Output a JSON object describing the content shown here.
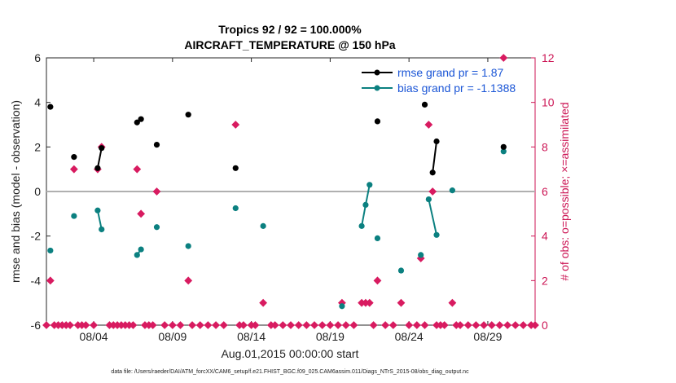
{
  "chart_data": {
    "type": "scatter",
    "title_line1": "Tropics 92 / 92 = 100.000%",
    "title_line2": "AIRCRAFT_TEMPERATURE @ 150 hPa",
    "xlabel": "Aug.01,2015 00:00:00 start",
    "ylabel_left": "rmse and bias (model - observation)",
    "ylabel_right": "# of obs: o=possible; ×=assimilated",
    "footnote": "data file: /Users/raeder/DAI/ATM_forcXX/CAM6_setup/f.e21.FHIST_BGC.f09_025.CAM6assim.011/Diags_NTrS_2015-08/obs_diag_output.nc",
    "xlim": [
      1,
      32
    ],
    "ylim_left": [
      -6,
      6
    ],
    "ylim_right": [
      0,
      12
    ],
    "x_tick_values": [
      4,
      9,
      14,
      19,
      24,
      29
    ],
    "x_tick_labels": [
      "08/04",
      "08/09",
      "08/14",
      "08/19",
      "08/24",
      "08/29"
    ],
    "y_left_ticks": [
      -6,
      -4,
      -2,
      0,
      2,
      4,
      6
    ],
    "y_right_ticks": [
      0,
      2,
      4,
      6,
      8,
      10,
      12
    ],
    "legend": [
      {
        "name": "rmse grand pr = 1.87",
        "color": "#000000"
      },
      {
        "name": "bias grand pr = -1.1388",
        "color": "#0b8080"
      }
    ],
    "colors": {
      "rmse": "#000000",
      "bias": "#0b8080",
      "obs": "#d81b60",
      "zero_line": "#b0b0b0"
    },
    "rmse_segments": [
      [
        [
          1.25,
          3.8
        ]
      ],
      [
        [
          2.75,
          1.55
        ]
      ],
      [
        [
          4.25,
          1.05
        ],
        [
          4.5,
          1.95
        ]
      ],
      [
        [
          6.75,
          3.1
        ],
        [
          7.0,
          3.25
        ]
      ],
      [
        [
          8.0,
          2.1
        ]
      ],
      [
        [
          10.0,
          3.45
        ]
      ],
      [
        [
          13.0,
          1.05
        ]
      ],
      [
        [
          22.0,
          3.15
        ]
      ],
      [
        [
          25.0,
          3.9
        ]
      ],
      [
        [
          25.5,
          0.85
        ],
        [
          25.75,
          2.25
        ]
      ],
      [
        [
          30.0,
          2.0
        ]
      ]
    ],
    "bias_segments": [
      [
        [
          1.25,
          -2.65
        ]
      ],
      [
        [
          2.75,
          -1.1
        ]
      ],
      [
        [
          4.25,
          -0.85
        ],
        [
          4.5,
          -1.7
        ]
      ],
      [
        [
          6.75,
          -2.85
        ],
        [
          7.0,
          -2.6
        ]
      ],
      [
        [
          8.0,
          -1.6
        ]
      ],
      [
        [
          10.0,
          -2.45
        ]
      ],
      [
        [
          13.0,
          -0.75
        ]
      ],
      [
        [
          14.75,
          -1.55
        ]
      ],
      [
        [
          19.75,
          -5.15
        ]
      ],
      [
        [
          21.0,
          -1.55
        ],
        [
          21.25,
          -0.6
        ],
        [
          21.5,
          0.3
        ]
      ],
      [
        [
          22.0,
          -2.1
        ]
      ],
      [
        [
          23.5,
          -3.55
        ]
      ],
      [
        [
          24.75,
          -2.85
        ]
      ],
      [
        [
          25.25,
          -0.35
        ],
        [
          25.75,
          -1.95
        ]
      ],
      [
        [
          26.75,
          0.05
        ]
      ],
      [
        [
          30.0,
          1.8
        ]
      ]
    ],
    "obs_assimilated": [
      [
        1.0,
        0
      ],
      [
        1.25,
        2
      ],
      [
        1.5,
        0
      ],
      [
        1.75,
        0
      ],
      [
        2.0,
        0
      ],
      [
        2.25,
        0
      ],
      [
        2.5,
        0
      ],
      [
        2.75,
        7
      ],
      [
        3.0,
        0
      ],
      [
        3.25,
        0
      ],
      [
        3.5,
        0
      ],
      [
        4.0,
        0
      ],
      [
        4.25,
        7
      ],
      [
        4.5,
        8
      ],
      [
        5.0,
        0
      ],
      [
        5.25,
        0
      ],
      [
        5.5,
        0
      ],
      [
        5.75,
        0
      ],
      [
        6.0,
        0
      ],
      [
        6.25,
        0
      ],
      [
        6.5,
        0
      ],
      [
        6.75,
        7
      ],
      [
        7.0,
        5
      ],
      [
        7.25,
        0
      ],
      [
        7.5,
        0
      ],
      [
        7.75,
        0
      ],
      [
        8.0,
        6
      ],
      [
        8.5,
        0
      ],
      [
        9.0,
        0
      ],
      [
        9.5,
        0
      ],
      [
        10.0,
        2
      ],
      [
        10.25,
        0
      ],
      [
        10.75,
        0
      ],
      [
        11.25,
        0
      ],
      [
        11.75,
        0
      ],
      [
        12.25,
        0
      ],
      [
        13.0,
        9
      ],
      [
        13.25,
        0
      ],
      [
        13.5,
        0
      ],
      [
        14.0,
        0
      ],
      [
        14.25,
        0
      ],
      [
        14.75,
        1
      ],
      [
        15.25,
        0
      ],
      [
        15.5,
        0
      ],
      [
        16.0,
        0
      ],
      [
        16.5,
        0
      ],
      [
        17.0,
        0
      ],
      [
        17.5,
        0
      ],
      [
        18.0,
        0
      ],
      [
        18.5,
        0
      ],
      [
        19.0,
        0
      ],
      [
        19.5,
        0
      ],
      [
        19.75,
        1
      ],
      [
        20.0,
        0
      ],
      [
        20.5,
        0
      ],
      [
        21.0,
        1
      ],
      [
        21.25,
        1
      ],
      [
        21.5,
        1
      ],
      [
        21.75,
        0
      ],
      [
        22.0,
        2
      ],
      [
        22.5,
        0
      ],
      [
        23.0,
        0
      ],
      [
        23.5,
        1
      ],
      [
        24.0,
        0
      ],
      [
        24.5,
        0
      ],
      [
        24.75,
        3
      ],
      [
        25.0,
        0
      ],
      [
        25.25,
        9
      ],
      [
        25.5,
        6
      ],
      [
        25.75,
        0
      ],
      [
        26.0,
        0
      ],
      [
        26.25,
        0
      ],
      [
        26.75,
        1
      ],
      [
        27.0,
        0
      ],
      [
        27.25,
        0
      ],
      [
        27.75,
        0
      ],
      [
        28.25,
        0
      ],
      [
        28.75,
        0
      ],
      [
        29.25,
        0
      ],
      [
        29.75,
        0
      ],
      [
        30.0,
        12
      ],
      [
        30.25,
        0
      ],
      [
        30.75,
        0
      ],
      [
        31.25,
        0
      ],
      [
        31.75,
        0
      ],
      [
        32.0,
        0
      ]
    ]
  }
}
